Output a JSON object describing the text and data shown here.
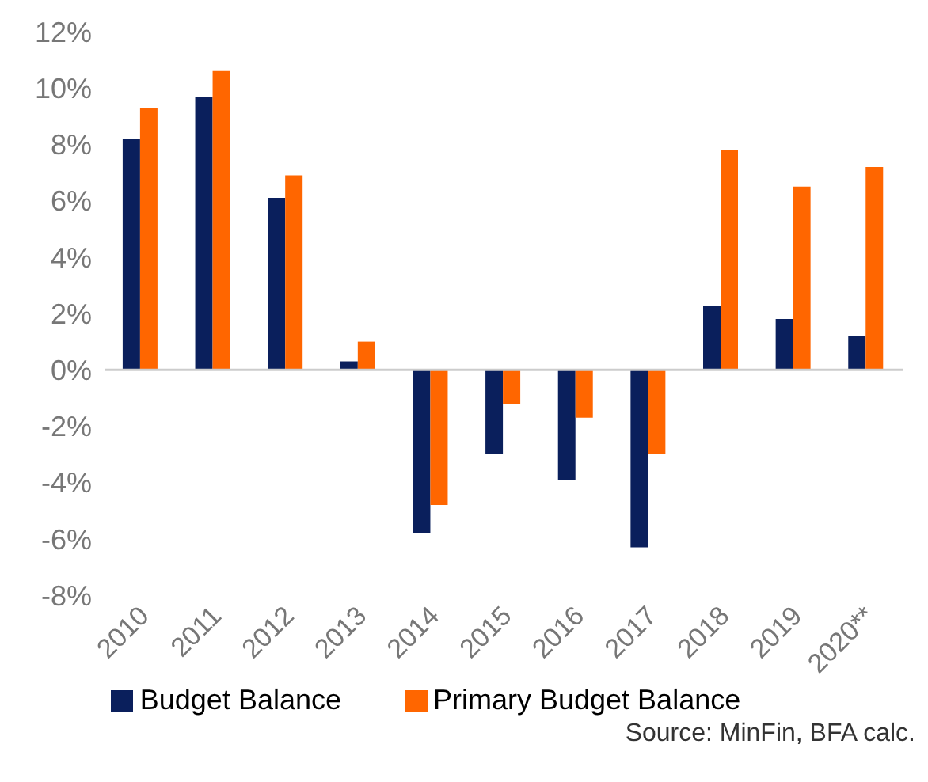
{
  "chart_data": {
    "type": "bar",
    "categories": [
      "2010",
      "2011",
      "2012",
      "2013",
      "2014",
      "2015",
      "2016",
      "2017",
      "2018",
      "2019",
      "2020**"
    ],
    "series": [
      {
        "name": "Budget Balance",
        "color": "#0a1f5c",
        "values": [
          8.2,
          9.7,
          6.1,
          0.3,
          -5.8,
          -3.0,
          -3.9,
          -6.3,
          2.25,
          1.8,
          1.2
        ]
      },
      {
        "name": "Primary Budget Balance",
        "color": "#ff6600",
        "values": [
          9.3,
          10.6,
          6.9,
          1.0,
          -4.8,
          -1.2,
          -1.7,
          -3.0,
          7.8,
          6.5,
          7.2
        ]
      }
    ],
    "ylim": [
      -8,
      12
    ],
    "yticks": [
      {
        "value": -8,
        "label": "-8%"
      },
      {
        "value": -6,
        "label": "-6%"
      },
      {
        "value": -4,
        "label": "-4%"
      },
      {
        "value": -2,
        "label": "-2%"
      },
      {
        "value": 0,
        "label": "0%"
      },
      {
        "value": 2,
        "label": "2%"
      },
      {
        "value": 4,
        "label": "4%"
      },
      {
        "value": 6,
        "label": "6%"
      },
      {
        "value": 8,
        "label": "8%"
      },
      {
        "value": 10,
        "label": "10%"
      },
      {
        "value": 12,
        "label": "12%"
      }
    ],
    "ref_lines": [
      {
        "axis": "y",
        "value": 0,
        "color": "#cccccc"
      }
    ],
    "legend": "bottom",
    "annotations": [
      "Source: MinFin,  BFA calc."
    ]
  }
}
